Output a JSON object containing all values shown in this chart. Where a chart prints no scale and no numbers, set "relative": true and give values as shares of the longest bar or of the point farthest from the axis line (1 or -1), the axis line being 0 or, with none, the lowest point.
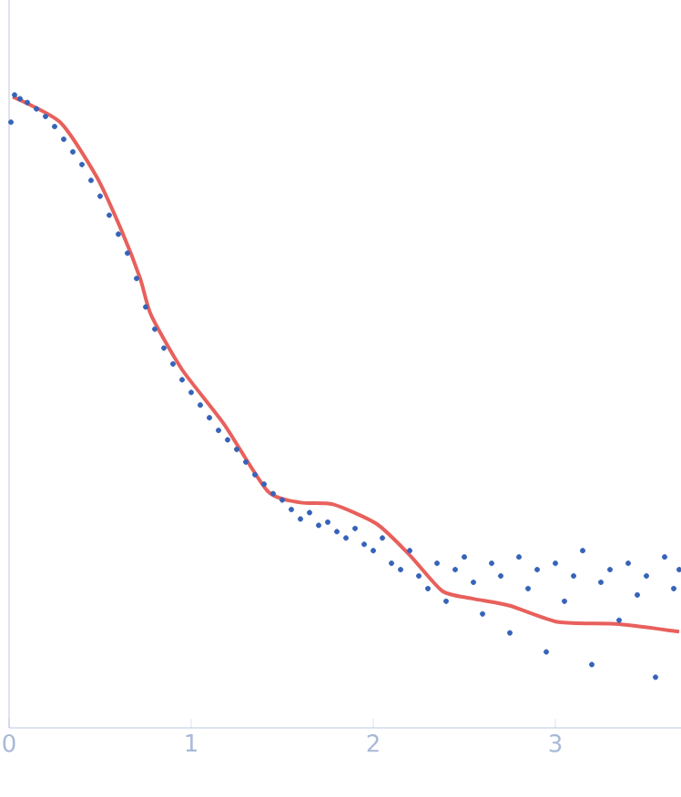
{
  "chart_data": {
    "type": "scatter",
    "relative": true,
    "xlim": [
      0,
      3.69
    ],
    "xticks": [
      0,
      1,
      2,
      3
    ],
    "tick_labels": "x",
    "grid": false,
    "series": [
      {
        "color": "#3563b8",
        "marker": "circle",
        "x": [
          0.01,
          0.03,
          0.06,
          0.1,
          0.15,
          0.2,
          0.25,
          0.3,
          0.35,
          0.4,
          0.45,
          0.5,
          0.55,
          0.6,
          0.65,
          0.7,
          0.75,
          0.8,
          0.85,
          0.9,
          0.95,
          1.0,
          1.05,
          1.1,
          1.15,
          1.2,
          1.25,
          1.3,
          1.35,
          1.4,
          1.45,
          1.5,
          1.55,
          1.6,
          1.65,
          1.7,
          1.75,
          1.8,
          1.85,
          1.9,
          1.95,
          2.0,
          2.05,
          2.1,
          2.15,
          2.2,
          2.25,
          2.3,
          2.35,
          2.4,
          2.45,
          2.5,
          2.55,
          2.6,
          2.65,
          2.7,
          2.75,
          2.8,
          2.85,
          2.9,
          2.95,
          3.0,
          3.05,
          3.1,
          3.15,
          3.2,
          3.25,
          3.3,
          3.35,
          3.4,
          3.45,
          3.5,
          3.55,
          3.6,
          3.65,
          3.68
        ],
        "values": [
          0.957,
          1.0,
          0.994,
          0.988,
          0.978,
          0.966,
          0.95,
          0.93,
          0.91,
          0.89,
          0.865,
          0.84,
          0.81,
          0.78,
          0.75,
          0.71,
          0.665,
          0.63,
          0.6,
          0.575,
          0.55,
          0.53,
          0.51,
          0.49,
          0.47,
          0.455,
          0.44,
          0.42,
          0.4,
          0.385,
          0.37,
          0.36,
          0.345,
          0.33,
          0.34,
          0.32,
          0.325,
          0.31,
          0.3,
          0.315,
          0.29,
          0.28,
          0.3,
          0.26,
          0.25,
          0.28,
          0.24,
          0.22,
          0.26,
          0.2,
          0.25,
          0.27,
          0.23,
          0.18,
          0.26,
          0.24,
          0.15,
          0.27,
          0.22,
          0.25,
          0.12,
          0.26,
          0.2,
          0.24,
          0.28,
          0.1,
          0.23,
          0.25,
          0.17,
          0.26,
          0.21,
          0.24,
          0.08,
          0.27,
          0.22,
          0.25
        ]
      },
      {
        "type": "line",
        "color": "#e8605c",
        "marker": "none",
        "line_style": "solid",
        "x": [
          0.02,
          0.28,
          0.48,
          0.62,
          0.72,
          0.78,
          0.95,
          1.18,
          1.42,
          1.6,
          1.78,
          2.02,
          2.2,
          2.38,
          2.55,
          2.75,
          3.02,
          3.35,
          3.68
        ],
        "values": [
          0.997,
          0.957,
          0.871,
          0.784,
          0.71,
          0.652,
          0.566,
          0.48,
          0.374,
          0.356,
          0.353,
          0.322,
          0.273,
          0.216,
          0.204,
          0.193,
          0.167,
          0.164,
          0.152
        ]
      }
    ]
  }
}
